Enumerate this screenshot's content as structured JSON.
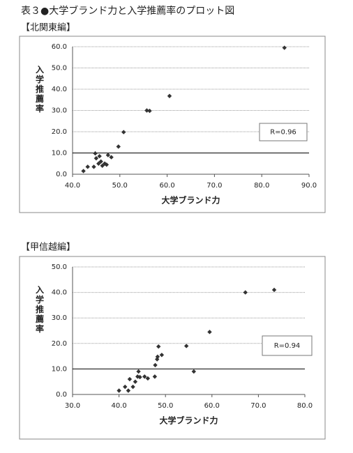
{
  "title": "表３●大学ブランド力と入学推薦率のプロット図",
  "chart_data": [
    {
      "type": "scatter",
      "title": "【北関東編】",
      "xlabel": "大学ブランド力",
      "ylabel": "入学推薦率",
      "x": [
        42.3,
        43.2,
        44.5,
        44.8,
        45.0,
        45.5,
        45.7,
        46.0,
        46.3,
        46.8,
        47.2,
        47.5,
        48.2,
        49.7,
        50.8,
        55.7,
        56.3,
        60.5,
        84.8
      ],
      "values": [
        1.5,
        3.5,
        3.5,
        9.8,
        7.5,
        5.0,
        8.5,
        6.0,
        4.0,
        5.0,
        4.5,
        9.0,
        8.0,
        13.0,
        19.8,
        30.0,
        29.8,
        36.8,
        59.5
      ],
      "color": "#333333",
      "xlim": [
        40,
        90
      ],
      "xticks": [
        {
          "value": 40,
          "label": "40.0"
        },
        {
          "value": 50,
          "label": "50.0"
        },
        {
          "value": 60,
          "label": "60.0"
        },
        {
          "value": 70,
          "label": "70.0"
        },
        {
          "value": 80,
          "label": "80.0"
        },
        {
          "value": 90,
          "label": "90.0"
        }
      ],
      "ylim": [
        0,
        60
      ],
      "yticks": [
        {
          "value": 0,
          "label": "0.0"
        },
        {
          "value": 10,
          "label": "10.0"
        },
        {
          "value": 20,
          "label": "20.0"
        },
        {
          "value": 30,
          "label": "30.0"
        },
        {
          "value": 40,
          "label": "40.0"
        },
        {
          "value": 50,
          "label": "50.0"
        },
        {
          "value": 60,
          "label": "60.0"
        }
      ],
      "grid": true,
      "reference_line": 10,
      "annotation": "R=0.96"
    },
    {
      "type": "scatter",
      "title": "【甲信越編】",
      "xlabel": "大学ブランド力",
      "ylabel": "入学推薦率",
      "x": [
        40.0,
        41.3,
        42.0,
        42.3,
        43.0,
        43.5,
        44.0,
        44.2,
        44.5,
        45.5,
        46.2,
        47.7,
        47.8,
        48.2,
        48.3,
        48.5,
        49.2,
        54.5,
        56.1,
        59.5,
        67.2,
        73.4
      ],
      "values": [
        1.5,
        3.0,
        1.5,
        6.0,
        3.0,
        5.0,
        7.0,
        9.0,
        6.8,
        7.0,
        6.3,
        7.0,
        11.5,
        13.8,
        14.8,
        18.8,
        15.5,
        19.0,
        9.0,
        24.5,
        40.0,
        41.0
      ],
      "color": "#333333",
      "xlim": [
        30,
        80
      ],
      "xticks": [
        {
          "value": 30,
          "label": "30.0"
        },
        {
          "value": 40,
          "label": "40.0"
        },
        {
          "value": 50,
          "label": "50.0"
        },
        {
          "value": 60,
          "label": "60.0"
        },
        {
          "value": 70,
          "label": "70.0"
        },
        {
          "value": 80,
          "label": "80.0"
        }
      ],
      "ylim": [
        0,
        50
      ],
      "yticks": [
        {
          "value": 0,
          "label": "0.0"
        },
        {
          "value": 10,
          "label": "10.0"
        },
        {
          "value": 20,
          "label": "20.0"
        },
        {
          "value": 30,
          "label": "30.0"
        },
        {
          "value": 40,
          "label": "40.0"
        },
        {
          "value": 50,
          "label": "50.0"
        }
      ],
      "grid": true,
      "reference_line": 10,
      "annotation": "R=0.94"
    }
  ]
}
